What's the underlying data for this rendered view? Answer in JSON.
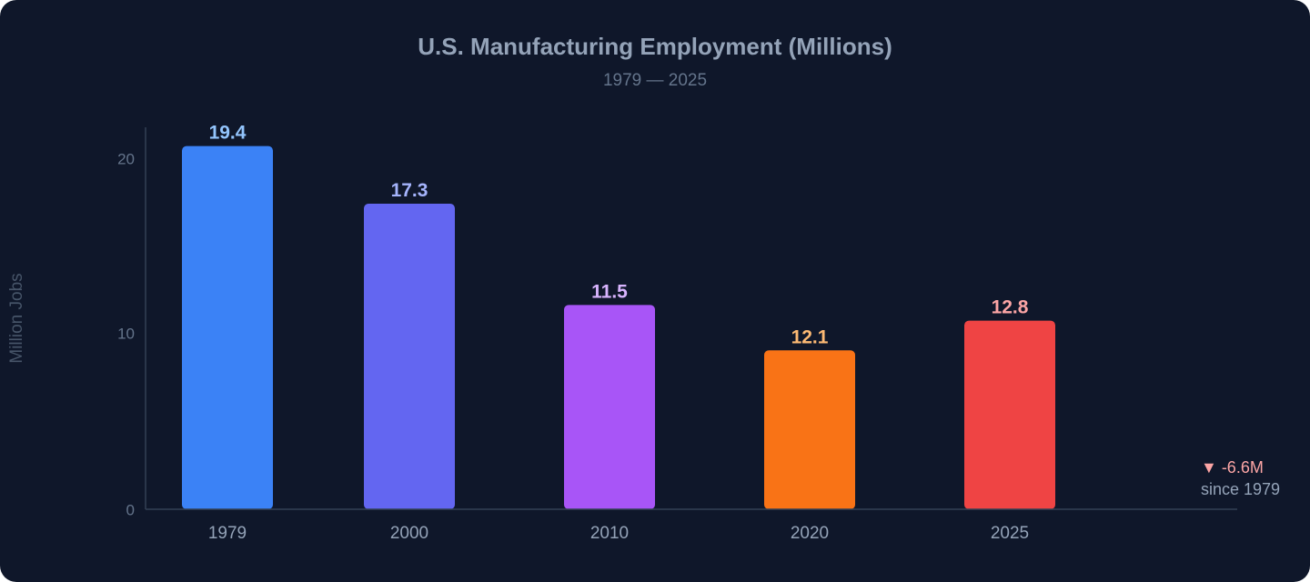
{
  "title": "U.S. Manufacturing Employment (Millions)",
  "subtitle": "1979 — 2025",
  "chart_data": {
    "type": "bar",
    "title": "U.S. Manufacturing Employment (Millions)",
    "subtitle": "1979 — 2025",
    "xlabel": "",
    "ylabel": "Million Jobs",
    "categories": [
      "1979",
      "2000",
      "2010",
      "2020",
      "2025"
    ],
    "values": [
      19.4,
      17.3,
      11.5,
      12.1,
      12.8
    ],
    "y_ticks": [
      0,
      10,
      20
    ],
    "ylim": [
      0,
      22
    ],
    "grid": false,
    "legend": "none",
    "bar_colors": [
      "#3b82f6",
      "#6366f1",
      "#a855f7",
      "#f97316",
      "#ef4444"
    ],
    "label_colors": [
      "#93c5fd",
      "#a5b4fc",
      "#d8b4fe",
      "#fdba74",
      "#fca5a5"
    ]
  },
  "annotation": {
    "change": "▼ -6.6M",
    "since": "since 1979"
  },
  "colors": {
    "background": "#0f172a",
    "axis": "#334155",
    "tick_text": "#64748b",
    "category_text": "#94a3b8"
  }
}
